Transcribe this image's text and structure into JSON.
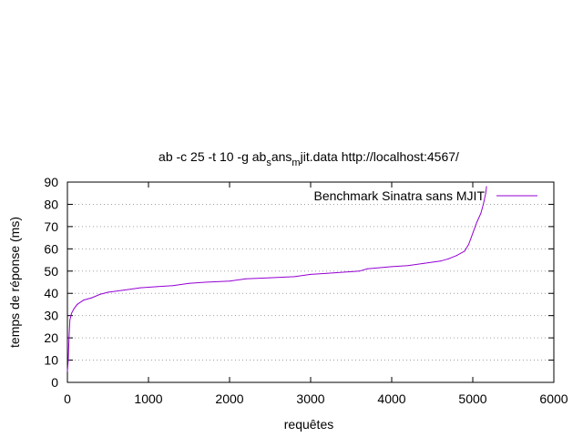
{
  "chart_data": {
    "type": "line",
    "title": {
      "parts": [
        "ab -c 25 -t 10 -g ab",
        "s",
        "ans",
        "m",
        "jit.data http://localhost:4567/"
      ]
    },
    "xlabel": "requêtes",
    "ylabel": "temps de réponse (ms)",
    "xlim": [
      0,
      6000
    ],
    "ylim": [
      0,
      90
    ],
    "x_ticks": [
      0,
      1000,
      2000,
      3000,
      4000,
      5000,
      6000
    ],
    "y_ticks": [
      0,
      10,
      20,
      30,
      40,
      50,
      60,
      70,
      80,
      90
    ],
    "grid": "horizontal dotted",
    "legend_position": "top-right",
    "series": [
      {
        "name": "Benchmark Sinatra sans MJIT",
        "color": "#9400d3",
        "x": [
          0,
          10,
          20,
          30,
          50,
          80,
          120,
          200,
          300,
          400,
          500,
          700,
          900,
          1100,
          1300,
          1500,
          1700,
          2000,
          2200,
          2500,
          2800,
          3000,
          3200,
          3400,
          3600,
          3700,
          4000,
          4200,
          4400,
          4600,
          4700,
          4800,
          4900,
          4950,
          5000,
          5050,
          5100,
          5130,
          5160,
          5170
        ],
        "values": [
          5,
          10,
          20,
          28,
          31,
          33,
          35,
          37,
          38,
          39.5,
          40.5,
          41.5,
          42.5,
          43,
          43.5,
          44.5,
          45,
          45.5,
          46.5,
          47,
          47.5,
          48.5,
          49,
          49.5,
          50,
          51,
          52,
          52.5,
          53.5,
          54.5,
          55.5,
          57,
          59,
          62,
          67,
          72,
          76,
          80,
          85,
          88
        ]
      }
    ]
  }
}
